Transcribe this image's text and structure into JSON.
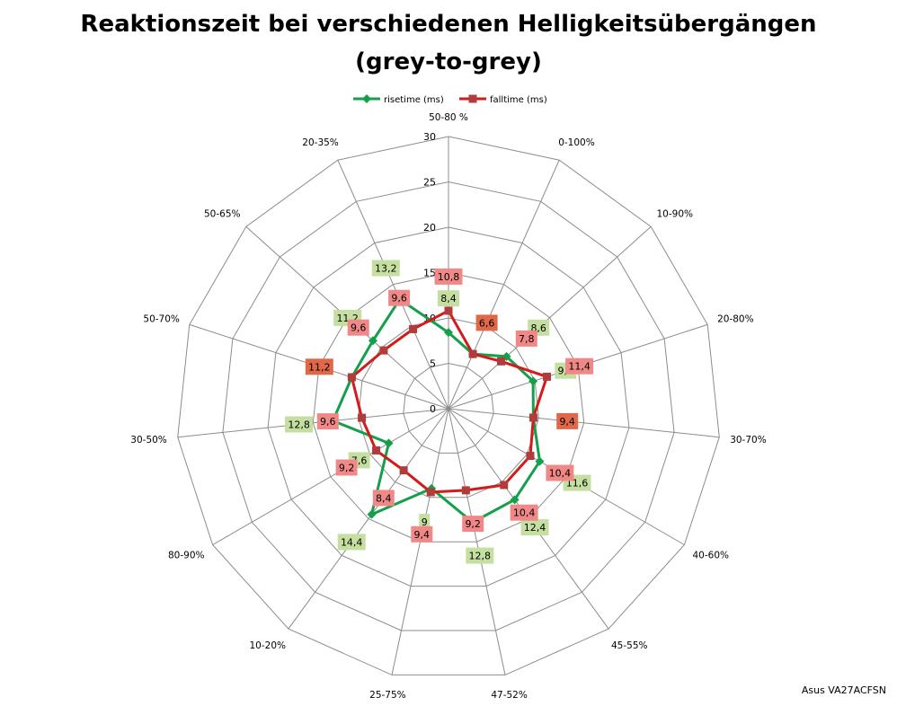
{
  "chart_data": {
    "type": "radar",
    "title_line1": "Reaktionszeit bei verschiedenen Helligkeitsübergängen",
    "title_line2": "(grey-to-grey)",
    "categories": [
      "50-80 %",
      "0-100%",
      "10-90%",
      "20-80%",
      "30-70%",
      "40-60%",
      "45-55%",
      "47-52%",
      "25-75%",
      "10-20%",
      "80-90%",
      "30-50%",
      "50-70%",
      "50-65%",
      "20-35%"
    ],
    "series": [
      {
        "name": "risetime (ms)",
        "color": "#14a04a",
        "marker": "diamond",
        "values": [
          8.4,
          6.6,
          8.6,
          9.8,
          9.4,
          11.6,
          12.4,
          12.8,
          9,
          14.4,
          7.6,
          12.8,
          11.2,
          11.2,
          13.2
        ],
        "label_color": "#c4dfa0",
        "value_labels": [
          "8,4",
          "6,6",
          "8,6",
          "9,8",
          "9,4",
          "11,6",
          "12,4",
          "12,8",
          "9",
          "14,4",
          "7,6",
          "12,8",
          "11,2",
          "11,2",
          "13,2"
        ]
      },
      {
        "name": "falltime (ms)",
        "color": "#d41a1a",
        "marker": "square",
        "values": [
          10.8,
          6.6,
          7.8,
          11.4,
          9.4,
          10.4,
          10.4,
          9.2,
          9.4,
          8.4,
          9.2,
          9.6,
          11.2,
          9.6,
          9.6
        ],
        "label_color": "#f08888",
        "value_labels": [
          "10,8",
          "6,6",
          "7,8",
          "11,4",
          "9,4",
          "10,4",
          "10,4",
          "9,2",
          "9,4",
          "8,4",
          "9,2",
          "9,6",
          "11,2",
          "9,6",
          "9,6"
        ]
      }
    ],
    "overlap_label_color": "#e06848",
    "r_ticks": [
      "0",
      "5",
      "10",
      "15",
      "20",
      "25",
      "30"
    ],
    "rmin": 0,
    "rmax": 30,
    "grid": true,
    "legend_position": "top"
  },
  "watermark": "Asus VA27ACFSN"
}
